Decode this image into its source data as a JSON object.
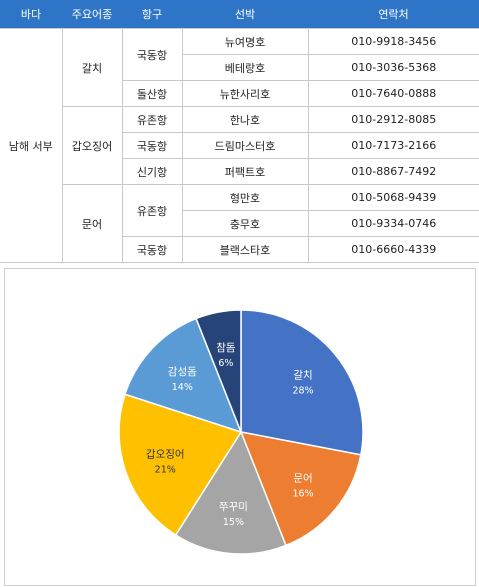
{
  "table": {
    "headers": [
      "바다",
      "주요어종",
      "항구",
      "선박",
      "연락처"
    ],
    "sea": "남해 서부",
    "groups": [
      {
        "species": "갈치",
        "ports": [
          {
            "port": "국동항",
            "ships": [
              {
                "name": "뉴여명호",
                "phone": "010-9918-3456"
              },
              {
                "name": "베테랑호",
                "phone": "010-3036-5368"
              }
            ]
          },
          {
            "port": "돌산항",
            "ships": [
              {
                "name": "뉴한사리호",
                "phone": "010-7640-0888"
              }
            ]
          }
        ]
      },
      {
        "species": "갑오징어",
        "ports": [
          {
            "port": "유존항",
            "ships": [
              {
                "name": "한나호",
                "phone": "010-2912-8085"
              }
            ]
          },
          {
            "port": "국동항",
            "ships": [
              {
                "name": "드림마스터호",
                "phone": "010-7173-2166"
              }
            ]
          },
          {
            "port": "신기항",
            "ships": [
              {
                "name": "퍼팩트호",
                "phone": "010-8867-7492"
              }
            ]
          }
        ]
      },
      {
        "species": "문어",
        "ports": [
          {
            "port": "유존항",
            "ships": [
              {
                "name": "형만호",
                "phone": "010-5068-9439"
              },
              {
                "name": "충무호",
                "phone": "010-9334-0746"
              }
            ]
          },
          {
            "port": "국동항",
            "ships": [
              {
                "name": "블랙스타호",
                "phone": "010-6660-4339"
              }
            ]
          }
        ]
      }
    ]
  },
  "chart_data": {
    "type": "pie",
    "slices": [
      {
        "label": "갈치",
        "value": 28,
        "display": "28%",
        "color": "#4472c4"
      },
      {
        "label": "문어",
        "value": 16,
        "display": "16%",
        "color": "#ed7d31"
      },
      {
        "label": "쭈꾸미",
        "value": 15,
        "display": "15%",
        "color": "#a5a5a5"
      },
      {
        "label": "갑오징어",
        "value": 21,
        "display": "21%",
        "color": "#ffc000"
      },
      {
        "label": "감성돔",
        "value": 14,
        "display": "14%",
        "color": "#5b9bd5"
      },
      {
        "label": "참돔",
        "value": 6,
        "display": "6%",
        "color": "#264478"
      }
    ],
    "start_angle_deg": 0,
    "direction": "clockwise",
    "legend": "none"
  }
}
